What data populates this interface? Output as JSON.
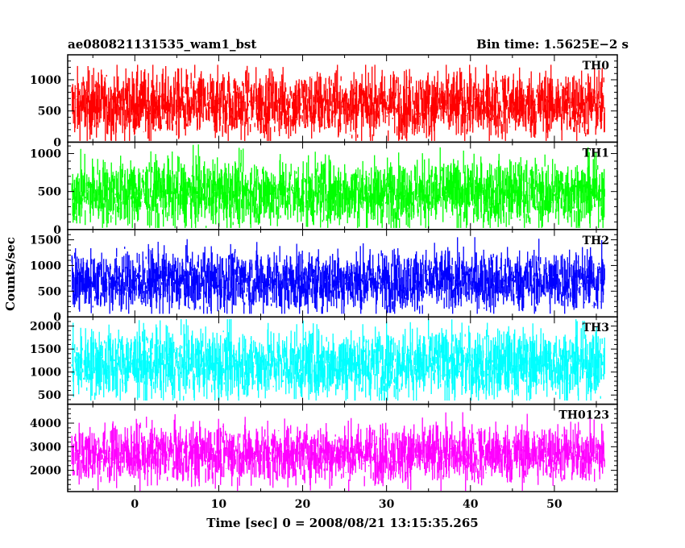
{
  "chart_data": {
    "type": "line",
    "title_left": "ae080821131535_wam1_bst",
    "title_right": "Bin time: 1.5625E−2 s",
    "xlabel": "Time [sec] 0 = 2008/08/21 13:15:35.265",
    "ylabel": "Counts/sec",
    "xlim": [
      -8.0,
      57.5
    ],
    "x_ticks": [
      0,
      10,
      20,
      30,
      40,
      50
    ],
    "x_data_range": [
      -7.5,
      56.0
    ],
    "bin_time": 0.015625,
    "panels": [
      {
        "name": "TH0",
        "color": "#ff0000",
        "ylim": [
          0,
          1400
        ],
        "y_ticks": [
          0,
          500,
          1000
        ],
        "mean": 600,
        "spread": 270,
        "min": 20,
        "max": 1240
      },
      {
        "name": "TH1",
        "color": "#00ff00",
        "ylim": [
          0,
          1150
        ],
        "y_ticks": [
          0,
          500,
          1000
        ],
        "mean": 480,
        "spread": 220,
        "min": 20,
        "max": 1120
      },
      {
        "name": "TH2",
        "color": "#0000ff",
        "ylim": [
          0,
          1700
        ],
        "y_ticks": [
          0,
          500,
          1000,
          1500
        ],
        "mean": 700,
        "spread": 300,
        "min": 60,
        "max": 1620
      },
      {
        "name": "TH3",
        "color": "#00ffff",
        "ylim": [
          300,
          2200
        ],
        "y_ticks": [
          500,
          1000,
          1500,
          2000
        ],
        "mean": 1180,
        "spread": 380,
        "min": 380,
        "max": 2150
      },
      {
        "name": "TH0123",
        "color": "#ff00ff",
        "ylim": [
          1100,
          4800
        ],
        "y_ticks": [
          2000,
          3000,
          4000
        ],
        "mean": 2700,
        "spread": 620,
        "min": 1130,
        "max": 4550
      }
    ]
  }
}
